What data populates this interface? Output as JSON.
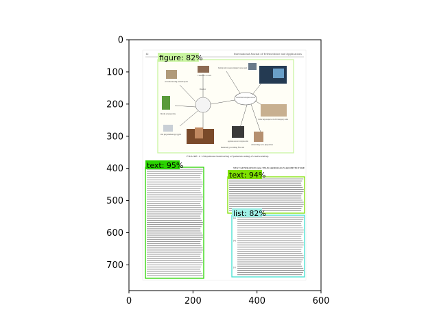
{
  "axes": {
    "x_ticks": [
      "0",
      "200",
      "400",
      "600"
    ],
    "y_ticks": [
      "0",
      "100",
      "200",
      "300",
      "400",
      "500",
      "600",
      "700"
    ]
  },
  "document": {
    "page_number": "12",
    "journal": "International Journal of Telemedicine and Applications",
    "figure_caption": "FIGURE 1: Ubiquitous monitoring of patients using e5 networking.",
    "figure_labels": {
      "home": "At home/nursing home/hospice",
      "caretaker_work": "Caretaker at work",
      "vending": "Sending alarm to nearest emergency rescue squad",
      "doctor": "Doctor",
      "mobile_home": "Mobile at leisure time",
      "cloud": "Wired/wireless heterogeneous network",
      "cardiac": "Cardiac surgeon/experts at the ICU/emergency station",
      "physiotherapy": "On physiotherapy/gym",
      "application": "Application servers at local physician clinic",
      "remote": "Remotely providing first aid",
      "physician": "Attending new physician"
    },
    "section_heading": "NEXT GENERATION (nG) TELECARDIOLOGY ARCHITECTURE",
    "list_items": [
      "(a)",
      "(b)",
      "(c)"
    ]
  },
  "detections": [
    {
      "label": "figure: 82%",
      "color": "#c9f5a0"
    },
    {
      "label": "text: 95%",
      "color": "#2ad400"
    },
    {
      "label": "text: 94%",
      "color": "#7ee000"
    },
    {
      "label": "list: 82%",
      "color": "#40e0d0"
    }
  ]
}
